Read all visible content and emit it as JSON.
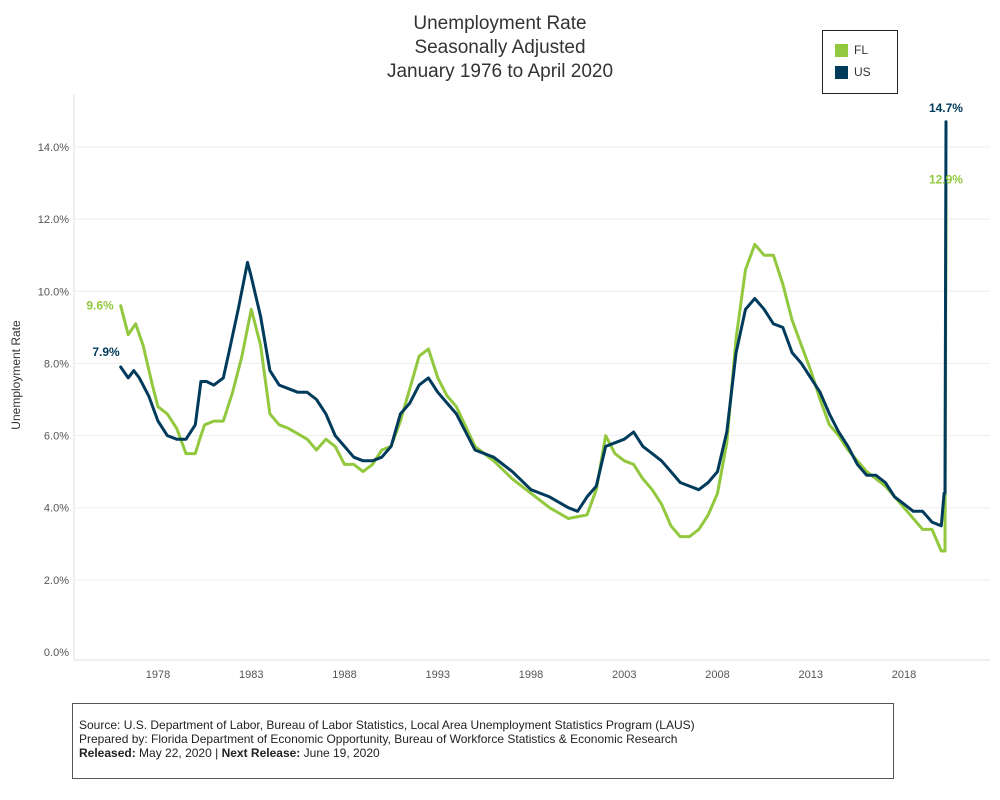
{
  "title_lines": [
    "Unemployment Rate",
    "Seasonally Adjusted",
    "January 1976 to April 2020"
  ],
  "legend": [
    {
      "name": "FL",
      "color": "#92c83e"
    },
    {
      "name": "US",
      "color": "#003b5c"
    }
  ],
  "source": {
    "line1": "Source: U.S. Department of Labor, Bureau of Labor Statistics, Local Area Unemployment Statistics Program (LAUS)",
    "line2": "Prepared by: Florida Department of Economic Opportunity, Bureau of Workforce Statistics & Economic Research",
    "released_label": "Released:",
    "released_value": "May 22, 2020",
    "separator": "|",
    "next_label": "Next Release:",
    "next_value": "June 19, 2020"
  },
  "chart_data": {
    "type": "line",
    "ylabel": "Unemployment Rate",
    "xlabel": "",
    "xlim": [
      1975.0,
      2022.0
    ],
    "ylim": [
      0,
      14.7
    ],
    "x_ticks": [
      1978,
      1983,
      1988,
      1993,
      1998,
      2003,
      2008,
      2013,
      2018
    ],
    "x_tick_labels": [
      "1978",
      "1983",
      "1988",
      "1993",
      "1998",
      "2003",
      "2008",
      "2013",
      "2018"
    ],
    "y_ticks": [
      0,
      2,
      4,
      6,
      8,
      10,
      12,
      14
    ],
    "y_tick_labels": [
      "0.0%",
      "2.0%",
      "4.0%",
      "6.0%",
      "8.0%",
      "10.0%",
      "12.0%",
      "14.0%"
    ],
    "grid": true,
    "legend_position": "top-right",
    "series": [
      {
        "name": "FL",
        "color": "#92c83e",
        "start_label": "9.6%",
        "end_label": "12.9%",
        "x": [
          1976.0,
          1976.4,
          1976.8,
          1977.2,
          1977.7,
          1978.0,
          1978.5,
          1979.0,
          1979.5,
          1980.0,
          1980.3,
          1980.5,
          1981.0,
          1981.5,
          1982.0,
          1982.5,
          1983.0,
          1983.5,
          1984.0,
          1984.5,
          1985.0,
          1986.0,
          1986.5,
          1987.0,
          1987.5,
          1988.0,
          1988.5,
          1989.0,
          1989.5,
          1990.0,
          1990.5,
          1991.0,
          1991.5,
          1992.0,
          1992.5,
          1993.0,
          1993.5,
          1994.0,
          1995.0,
          1996.0,
          1997.0,
          1998.0,
          1999.0,
          2000.0,
          2001.0,
          2001.5,
          2002.0,
          2002.5,
          2003.0,
          2003.5,
          2004.0,
          2004.5,
          2005.0,
          2005.5,
          2006.0,
          2006.5,
          2007.0,
          2007.5,
          2008.0,
          2008.5,
          2009.0,
          2009.5,
          2010.0,
          2010.5,
          2011.0,
          2011.5,
          2012.0,
          2012.5,
          2013.0,
          2013.5,
          2014.0,
          2014.5,
          2015.0,
          2016.0,
          2017.0,
          2017.5,
          2018.0,
          2018.5,
          2019.0,
          2019.5,
          2020.0,
          2020.2,
          2020.25
        ],
        "y": [
          9.6,
          8.8,
          9.1,
          8.5,
          7.4,
          6.8,
          6.6,
          6.2,
          5.5,
          5.5,
          6.0,
          6.3,
          6.4,
          6.4,
          7.2,
          8.2,
          9.5,
          8.5,
          6.6,
          6.3,
          6.2,
          5.9,
          5.6,
          5.9,
          5.7,
          5.2,
          5.2,
          5.0,
          5.2,
          5.6,
          5.7,
          6.4,
          7.3,
          8.2,
          8.4,
          7.6,
          7.1,
          6.8,
          5.7,
          5.3,
          4.8,
          4.4,
          4.0,
          3.7,
          3.8,
          4.5,
          6.0,
          5.5,
          5.3,
          5.2,
          4.8,
          4.5,
          4.1,
          3.5,
          3.2,
          3.2,
          3.4,
          3.8,
          4.4,
          5.8,
          8.7,
          10.6,
          11.3,
          11.0,
          11.0,
          10.2,
          9.2,
          8.5,
          7.8,
          7.0,
          6.3,
          6.0,
          5.6,
          5.0,
          4.6,
          4.3,
          4.0,
          3.7,
          3.4,
          3.4,
          2.8,
          2.8,
          12.9
        ]
      },
      {
        "name": "US",
        "color": "#003b5c",
        "start_label": "7.9%",
        "end_label": "14.7%",
        "x": [
          1976.0,
          1976.4,
          1976.7,
          1977.0,
          1977.5,
          1978.0,
          1978.5,
          1979.0,
          1979.5,
          1980.0,
          1980.3,
          1980.6,
          1981.0,
          1981.5,
          1981.8,
          1982.3,
          1982.8,
          1983.0,
          1983.5,
          1984.0,
          1984.5,
          1985.0,
          1985.5,
          1986.0,
          1986.5,
          1987.0,
          1987.5,
          1988.0,
          1988.5,
          1989.0,
          1989.5,
          1990.0,
          1990.5,
          1991.0,
          1991.5,
          1992.0,
          1992.5,
          1993.0,
          1993.5,
          1994.0,
          1994.5,
          1995.0,
          1996.0,
          1997.0,
          1998.0,
          1999.0,
          2000.0,
          2000.5,
          2001.0,
          2001.5,
          2002.0,
          2002.5,
          2003.0,
          2003.5,
          2004.0,
          2004.5,
          2005.0,
          2005.5,
          2006.0,
          2006.5,
          2007.0,
          2007.5,
          2008.0,
          2008.5,
          2009.0,
          2009.5,
          2010.0,
          2010.5,
          2011.0,
          2011.5,
          2012.0,
          2012.5,
          2013.0,
          2013.5,
          2014.0,
          2014.5,
          2015.0,
          2015.5,
          2016.0,
          2016.5,
          2017.0,
          2017.5,
          2018.0,
          2018.5,
          2019.0,
          2019.5,
          2020.0,
          2020.15,
          2020.2,
          2020.25
        ],
        "y": [
          7.9,
          7.6,
          7.8,
          7.6,
          7.1,
          6.4,
          6.0,
          5.9,
          5.9,
          6.3,
          7.5,
          7.5,
          7.4,
          7.6,
          8.3,
          9.5,
          10.8,
          10.4,
          9.3,
          7.8,
          7.4,
          7.3,
          7.2,
          7.2,
          7.0,
          6.6,
          6.0,
          5.7,
          5.4,
          5.3,
          5.3,
          5.4,
          5.7,
          6.6,
          6.9,
          7.4,
          7.6,
          7.2,
          6.9,
          6.6,
          6.1,
          5.6,
          5.4,
          5.0,
          4.5,
          4.3,
          4.0,
          3.9,
          4.3,
          4.6,
          5.7,
          5.8,
          5.9,
          6.1,
          5.7,
          5.5,
          5.3,
          5.0,
          4.7,
          4.6,
          4.5,
          4.7,
          5.0,
          6.1,
          8.3,
          9.5,
          9.8,
          9.5,
          9.1,
          9.0,
          8.3,
          8.0,
          7.6,
          7.2,
          6.6,
          6.1,
          5.7,
          5.2,
          4.9,
          4.9,
          4.7,
          4.3,
          4.1,
          3.9,
          3.9,
          3.6,
          3.5,
          4.4,
          4.4,
          14.7
        ]
      }
    ]
  }
}
